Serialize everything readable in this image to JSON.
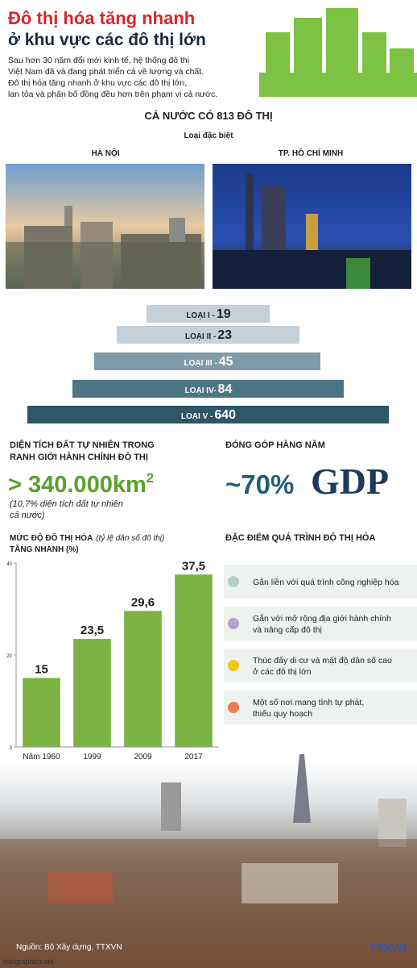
{
  "header": {
    "title_line1": "Đô thị hóa tăng nhanh",
    "title_line2": "ở khu vực các đô thị lớn",
    "intro": [
      "Sau hơn 30 năm đổi mới kinh tế, hệ thống đô thị",
      "Việt Nam đã và đang phát triển cả về lượng và chất.",
      "Đô thị hóa tăng nhanh ở khu vực các đô thị lớn,",
      "lan tỏa và phân bố đồng đều hơn trên phạm vi cả nước."
    ]
  },
  "overview": {
    "heading": "CẢ NƯỚC CÓ 813 ĐÔ THỊ",
    "special": "Loại đặc biệt",
    "cities": [
      "HÀ NỘI",
      "TP. HỒ CHÍ MINH"
    ]
  },
  "classes": [
    {
      "label": "LOẠI I -",
      "count": 19
    },
    {
      "label": "LOẠI II -",
      "count": 23
    },
    {
      "label": "LOẠI III -",
      "count": 45
    },
    {
      "label": "LOẠI IV-",
      "count": 84
    },
    {
      "label": "LOẠI V -",
      "count": 640
    }
  ],
  "area": {
    "heading": [
      "DIỆN TÍCH ĐẤT TỰ NHIÊN TRONG",
      "RANH GIỚI HÀNH CHÍNH ĐÔ THỊ"
    ],
    "value": "> 340.000km",
    "sup": "2",
    "note": [
      "(10,7% diện tích đất tự nhiên",
      "cả nước)"
    ]
  },
  "gdp": {
    "heading": "ĐÓNG GÓP HÀNG NĂM",
    "value": "~70%",
    "label": "GDP"
  },
  "chart_data": {
    "type": "bar",
    "title": "MỨC ĐỘ ĐÔ THỊ HÓA",
    "subtitle": "(tỷ lệ dân số đô thị)",
    "title2": "TĂNG NHANH (%)",
    "categories": [
      "Năm 1960",
      "1999",
      "2009",
      "2017"
    ],
    "values": [
      15,
      23.5,
      29.6,
      37.5
    ],
    "value_labels": [
      "15",
      "23,5",
      "29,6",
      "37,5"
    ],
    "color": "#7cb342",
    "ylim": [
      0,
      40
    ],
    "yticks": [
      0,
      20,
      40
    ]
  },
  "features": {
    "heading": "ĐẶC ĐIỂM QUÁ TRÌNH ĐÔ THỊ HÓA",
    "items": [
      {
        "lines": [
          "Gắn liền với quá trình công nghiệp hóa"
        ],
        "color": "#b7cfc4"
      },
      {
        "lines": [
          "Gắn với mở rộng địa giới hành chính",
          "và nâng cấp đô thị"
        ],
        "color": "#b9a0d0"
      },
      {
        "lines": [
          "Thúc đẩy di cư và mật độ dân số cao",
          "ở các đô thị lớn"
        ],
        "color": "#f5c518"
      },
      {
        "lines": [
          "Một số nơi mang tính tự phát,",
          "thiếu quy hoạch"
        ],
        "color": "#f07a4a"
      }
    ]
  },
  "footer": {
    "source": "Nguồn: Bộ Xây dựng, TTXVN",
    "site": "infographics.vn/",
    "logo": "TTXVN"
  }
}
